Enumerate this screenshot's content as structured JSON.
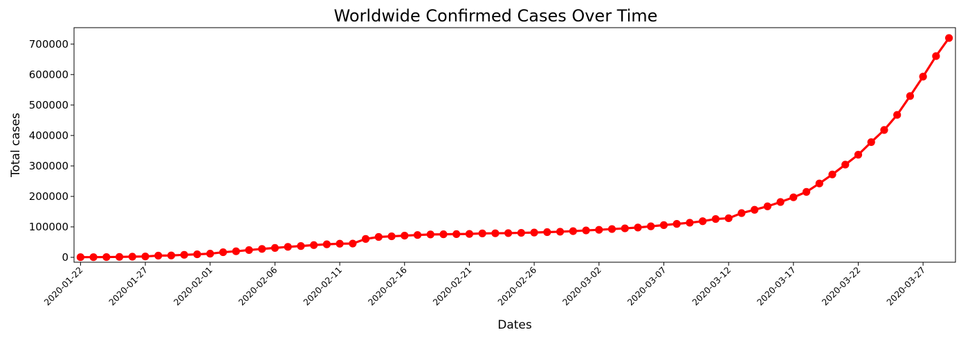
{
  "chart_data": {
    "type": "line",
    "title": "Worldwide Confirmed Cases Over Time",
    "xlabel": "Dates",
    "ylabel": "Total cases",
    "x_start": "2020-01-22",
    "x_end": "2020-03-29",
    "xtick_labels": [
      "2020-01-22",
      "2020-01-27",
      "2020-02-01",
      "2020-02-06",
      "2020-02-11",
      "2020-02-16",
      "2020-02-21",
      "2020-02-26",
      "2020-03-02",
      "2020-03-07",
      "2020-03-12",
      "2020-03-17",
      "2020-03-22",
      "2020-03-27"
    ],
    "ylim": [
      -16000,
      754000
    ],
    "ytick_values": [
      0,
      100000,
      200000,
      300000,
      400000,
      500000,
      600000,
      700000
    ],
    "ytick_labels": [
      "0",
      "100000",
      "200000",
      "300000",
      "400000",
      "500000",
      "600000",
      "700000"
    ],
    "grid": false,
    "color": "#ff0000",
    "marker": "circle",
    "values": [
      555,
      654,
      941,
      1434,
      2118,
      2927,
      5578,
      6166,
      8234,
      9927,
      12038,
      16787,
      19881,
      23892,
      27635,
      30794,
      34391,
      37120,
      40150,
      42762,
      44802,
      45221,
      60368,
      66885,
      69030,
      71224,
      73258,
      75136,
      75639,
      76197,
      76819,
      78572,
      78958,
      79561,
      80406,
      81388,
      82746,
      84112,
      86011,
      88369,
      90306,
      92840,
      95120,
      97886,
      101801,
      105847,
      109821,
      113590,
      118620,
      125875,
      128352,
      145205,
      156101,
      167454,
      181574,
      197102,
      214821,
      242500,
      272035,
      304396,
      336953,
      378235,
      418045,
      467653,
      529591,
      593291,
      660706,
      720117
    ]
  }
}
